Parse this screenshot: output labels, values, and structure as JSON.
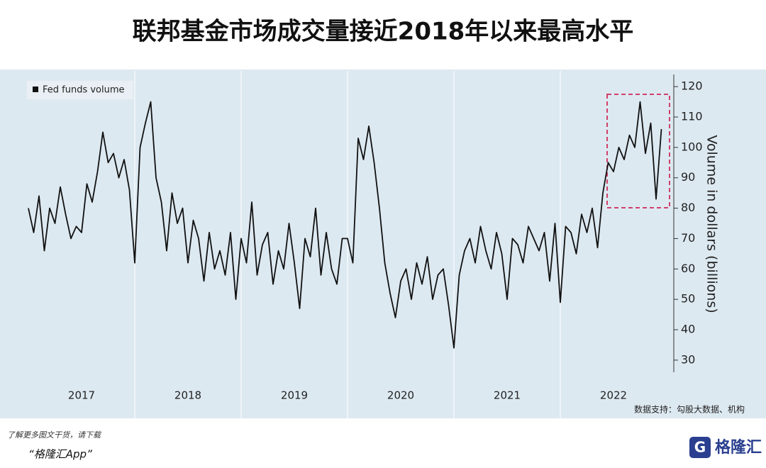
{
  "chart_data": {
    "type": "line",
    "title": "联邦基金市场成交量接近2018年以来最高水平",
    "y_label": "Volume in dollars (billions)",
    "source": "数据支持：勾股大数据、机构",
    "footer_line1": "了解更多图文干货，请下载",
    "footer_line2": "“格隆汇App”",
    "logo": "格隆汇",
    "legend_position": "upper left",
    "xlim": [
      2017,
      2023
    ],
    "xticks": [
      {
        "value": 2017.5,
        "label": "2017"
      },
      {
        "value": 2018.5,
        "label": "2018"
      },
      {
        "value": 2019.5,
        "label": "2019"
      },
      {
        "value": 2020.5,
        "label": "2020"
      },
      {
        "value": 2021.5,
        "label": "2021"
      },
      {
        "value": 2022.5,
        "label": "2022"
      }
    ],
    "xgrid": [
      2018,
      2019,
      2020,
      2021,
      2022
    ],
    "ylim": [
      26,
      124
    ],
    "yticks": [
      30,
      40,
      50,
      60,
      70,
      80,
      90,
      100,
      110,
      120
    ],
    "x": [
      2017,
      2017.05,
      2017.1,
      2017.15,
      2017.2,
      2017.25,
      2017.3,
      2017.35,
      2017.4,
      2017.45,
      2017.5,
      2017.55,
      2017.6,
      2017.65,
      2017.7,
      2017.75,
      2017.8,
      2017.85,
      2017.9,
      2017.95,
      2018,
      2018.05,
      2018.1,
      2018.15,
      2018.2,
      2018.25,
      2018.3,
      2018.35,
      2018.4,
      2018.45,
      2018.5,
      2018.55,
      2018.6,
      2018.65,
      2018.7,
      2018.75,
      2018.8,
      2018.85,
      2018.9,
      2018.95,
      2019,
      2019.05,
      2019.1,
      2019.15,
      2019.2,
      2019.25,
      2019.3,
      2019.35,
      2019.4,
      2019.45,
      2019.5,
      2019.55,
      2019.6,
      2019.65,
      2019.7,
      2019.75,
      2019.8,
      2019.85,
      2019.9,
      2019.95,
      2020,
      2020.05,
      2020.1,
      2020.15,
      2020.2,
      2020.25,
      2020.3,
      2020.35,
      2020.4,
      2020.45,
      2020.5,
      2020.55,
      2020.6,
      2020.65,
      2020.7,
      2020.75,
      2020.8,
      2020.85,
      2020.9,
      2020.95,
      2021,
      2021.05,
      2021.1,
      2021.15,
      2021.2,
      2021.25,
      2021.3,
      2021.35,
      2021.4,
      2021.45,
      2021.5,
      2021.55,
      2021.6,
      2021.65,
      2021.7,
      2021.75,
      2021.8,
      2021.85,
      2021.9,
      2021.95,
      2022,
      2022.05,
      2022.1,
      2022.15,
      2022.2,
      2022.25,
      2022.3,
      2022.35,
      2022.4,
      2022.45,
      2022.5,
      2022.55,
      2022.6,
      2022.65,
      2022.7,
      2022.75,
      2022.8,
      2022.85,
      2022.9,
      2022.95
    ],
    "series": [
      {
        "name": "Fed funds volume",
        "color": "#111111",
        "values": [
          80,
          72,
          84,
          66,
          80,
          75,
          87,
          78,
          70,
          74,
          72,
          88,
          82,
          92,
          105,
          95,
          98,
          90,
          96,
          86,
          62,
          100,
          108,
          115,
          90,
          82,
          66,
          85,
          75,
          80,
          62,
          76,
          70,
          56,
          72,
          60,
          66,
          58,
          72,
          50,
          70,
          62,
          82,
          58,
          68,
          72,
          55,
          66,
          60,
          75,
          62,
          47,
          70,
          64,
          80,
          58,
          72,
          60,
          55,
          70,
          70,
          62,
          103,
          96,
          107,
          95,
          80,
          62,
          52,
          44,
          56,
          60,
          50,
          62,
          55,
          64,
          50,
          58,
          60,
          48,
          34,
          58,
          66,
          70,
          62,
          74,
          66,
          60,
          72,
          65,
          50,
          70,
          68,
          62,
          74,
          70,
          66,
          72,
          56,
          75,
          49,
          74,
          72,
          65,
          78,
          72,
          80,
          67,
          85,
          95,
          92,
          100,
          96,
          104,
          100,
          115,
          98,
          108,
          83,
          106
        ]
      }
    ]
  }
}
